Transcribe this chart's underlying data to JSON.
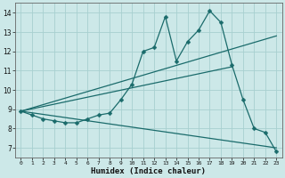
{
  "xlabel": "Humidex (Indice chaleur)",
  "ylabel": "",
  "bg_color": "#cce8e8",
  "grid_color": "#a8d0d0",
  "line_color": "#1a6b6b",
  "xlim": [
    -0.5,
    23.5
  ],
  "ylim": [
    6.5,
    14.5
  ],
  "xticks": [
    0,
    1,
    2,
    3,
    4,
    5,
    6,
    7,
    8,
    9,
    10,
    11,
    12,
    13,
    14,
    15,
    16,
    17,
    18,
    19,
    20,
    21,
    22,
    23
  ],
  "yticks": [
    7,
    8,
    9,
    10,
    11,
    12,
    13,
    14
  ],
  "line1_x": [
    0,
    1,
    2,
    3,
    4,
    5,
    6,
    7,
    8,
    9,
    10,
    11,
    12,
    13,
    14,
    15,
    16,
    17,
    18,
    19,
    20,
    21,
    22,
    23
  ],
  "line1_y": [
    8.9,
    8.7,
    8.5,
    8.4,
    8.3,
    8.3,
    8.5,
    8.7,
    8.8,
    9.5,
    10.3,
    12.0,
    12.2,
    13.8,
    11.5,
    12.5,
    13.1,
    14.1,
    13.5,
    11.3,
    9.5,
    8.0,
    7.8,
    6.8
  ],
  "line2_x": [
    0,
    23
  ],
  "line2_y": [
    8.9,
    12.8
  ],
  "line3_x": [
    0,
    19
  ],
  "line3_y": [
    8.9,
    11.2
  ],
  "line4_x": [
    0,
    23
  ],
  "line4_y": [
    8.9,
    7.0
  ]
}
